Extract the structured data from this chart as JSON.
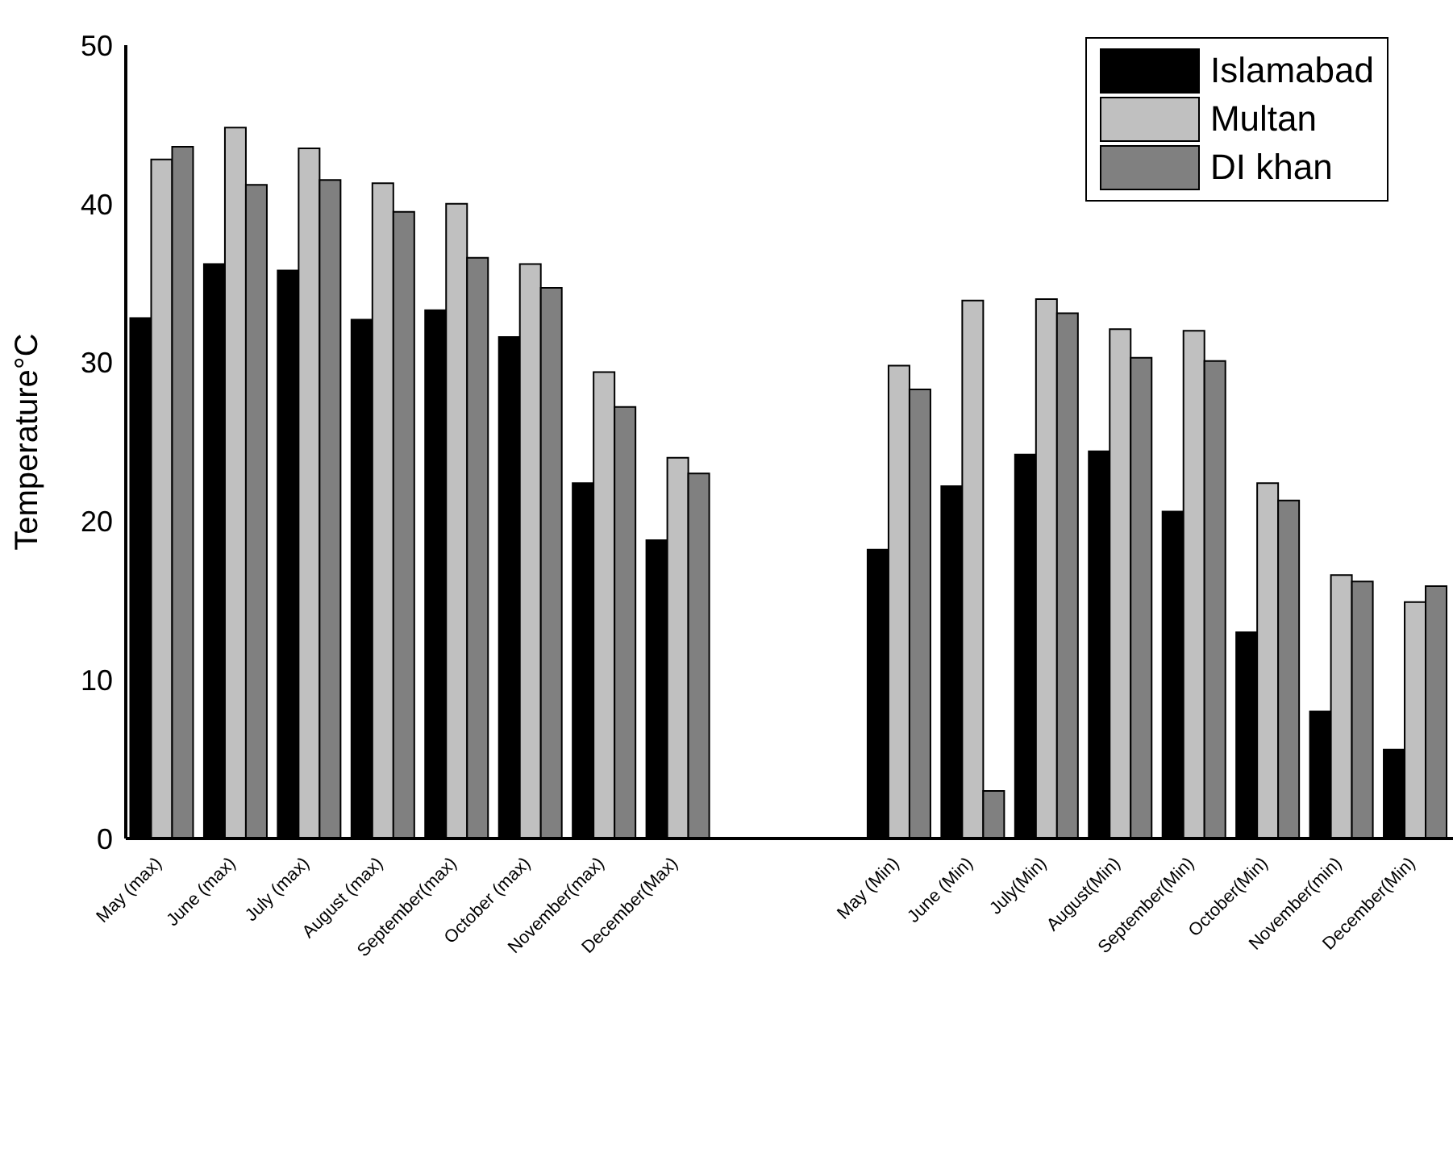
{
  "chart_data": {
    "type": "bar",
    "ylabel": "Temperature°C",
    "categories": [
      "May (max)",
      "June (max)",
      "July (max)",
      "August (max)",
      "September(max)",
      "October (max)",
      "November(max)",
      "December(Max)",
      null,
      null,
      "May (Min)",
      "June (Min)",
      "July(Min)",
      "August(Min)",
      "September(Min)",
      "October(Min)",
      "November(min)",
      "December(Min)"
    ],
    "series": [
      {
        "name": "Islamabad",
        "color": "#000000",
        "values": [
          32.8,
          36.2,
          35.8,
          32.7,
          33.3,
          31.6,
          22.4,
          18.8,
          null,
          null,
          18.2,
          22.2,
          24.2,
          24.4,
          20.6,
          13.0,
          8.0,
          5.6
        ]
      },
      {
        "name": "Multan",
        "color": "#c0c0c0",
        "values": [
          42.8,
          44.8,
          43.5,
          41.3,
          40.0,
          36.2,
          29.4,
          24.0,
          null,
          null,
          29.8,
          33.9,
          34.0,
          32.1,
          32.0,
          22.4,
          16.6,
          14.9
        ]
      },
      {
        "name": "DI khan",
        "color": "#808080",
        "values": [
          43.6,
          41.2,
          41.5,
          39.5,
          36.6,
          34.7,
          27.2,
          23.0,
          null,
          null,
          28.3,
          3.0,
          33.1,
          30.3,
          30.1,
          21.3,
          16.2,
          15.9
        ]
      }
    ],
    "ylim": [
      0,
      50
    ],
    "yticks": [
      0,
      10,
      20,
      30,
      40,
      50
    ],
    "grid": false,
    "legend": "top right"
  }
}
